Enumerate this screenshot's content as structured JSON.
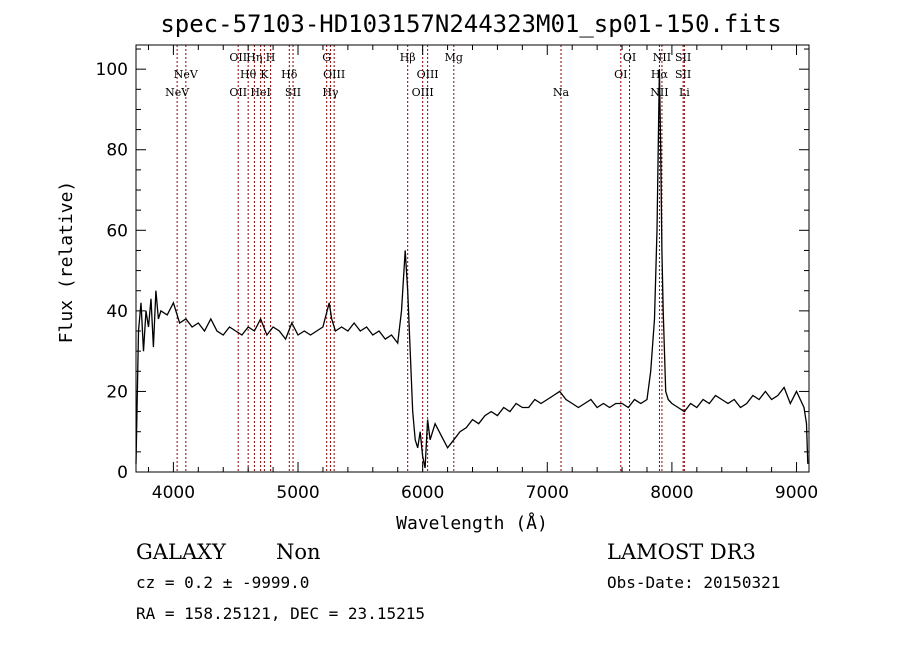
{
  "chart_data": {
    "type": "line",
    "title": "spec-57103-HD103157N244323M01_sp01-150.fits",
    "xlabel": "Wavelength (Å)",
    "ylabel": "Flux (relative)",
    "xlim": [
      3700,
      9100
    ],
    "ylim": [
      0,
      106
    ],
    "xticks": [
      4000,
      5000,
      6000,
      7000,
      8000,
      9000
    ],
    "yticks": [
      0,
      20,
      40,
      60,
      80,
      100
    ],
    "xtick_labels": [
      "4000",
      "5000",
      "6000",
      "7000",
      "8000",
      "9000"
    ],
    "ytick_labels": [
      "0",
      "20",
      "40",
      "60",
      "80",
      "100"
    ],
    "grid": false,
    "line_color": "#000000",
    "marker_color": "#8b0000",
    "series": [
      {
        "x": [
          3700,
          3720,
          3740,
          3760,
          3780,
          3800,
          3820,
          3840,
          3860,
          3880,
          3900,
          3950,
          4000,
          4050,
          4100,
          4150,
          4200,
          4250,
          4300,
          4350,
          4400,
          4450,
          4500,
          4550,
          4600,
          4650,
          4700,
          4750,
          4800,
          4850,
          4900,
          4950,
          5000,
          5050,
          5100,
          5150,
          5200,
          5250,
          5270,
          5300,
          5350,
          5400,
          5450,
          5500,
          5550,
          5600,
          5650,
          5700,
          5750,
          5800,
          5830,
          5860,
          5880,
          5900,
          5920,
          5940,
          5960,
          5980,
          6000,
          6020,
          6040,
          6060,
          6080,
          6100,
          6150,
          6200,
          6250,
          6300,
          6350,
          6400,
          6450,
          6500,
          6550,
          6600,
          6650,
          6700,
          6750,
          6800,
          6850,
          6900,
          6950,
          7000,
          7050,
          7100,
          7150,
          7200,
          7250,
          7300,
          7350,
          7400,
          7450,
          7500,
          7550,
          7600,
          7650,
          7700,
          7750,
          7800,
          7830,
          7860,
          7880,
          7900,
          7910,
          7920,
          7930,
          7950,
          7970,
          8000,
          8050,
          8100,
          8150,
          8200,
          8250,
          8300,
          8350,
          8400,
          8450,
          8500,
          8550,
          8600,
          8650,
          8700,
          8750,
          8800,
          8850,
          8900,
          8950,
          9000,
          9030,
          9060,
          9080,
          9090
        ],
        "y": [
          2,
          35,
          42,
          30,
          40,
          36,
          43,
          31,
          45,
          38,
          40,
          39,
          42,
          37,
          38,
          36,
          37,
          35,
          38,
          35,
          34,
          36,
          35,
          34,
          36,
          35,
          38,
          34,
          36,
          35,
          33,
          37,
          34,
          35,
          34,
          35,
          36,
          42,
          38,
          35,
          36,
          35,
          37,
          35,
          36,
          34,
          35,
          33,
          34,
          32,
          40,
          55,
          45,
          30,
          15,
          8,
          6,
          10,
          4,
          1,
          13,
          8,
          10,
          12,
          9,
          6,
          8,
          10,
          11,
          13,
          12,
          14,
          15,
          14,
          16,
          15,
          17,
          16,
          16,
          18,
          17,
          18,
          19,
          20,
          18,
          17,
          16,
          17,
          18,
          16,
          17,
          16,
          17,
          17,
          16,
          18,
          17,
          18,
          25,
          38,
          60,
          100,
          80,
          55,
          40,
          20,
          18,
          17,
          16,
          15,
          17,
          16,
          18,
          17,
          19,
          18,
          17,
          18,
          16,
          17,
          19,
          18,
          20,
          18,
          19,
          21,
          17,
          20,
          18,
          16,
          12,
          2
        ]
      }
    ],
    "line_markers": [
      {
        "x": 4030,
        "label": "NeV",
        "row": 3
      },
      {
        "x": 4100,
        "label": "NeV",
        "row": 2
      },
      {
        "x": 4520,
        "label": "OII",
        "row": 1
      },
      {
        "x": 4520,
        "label": "OII",
        "row": 3
      },
      {
        "x": 4600,
        "label": "Hθ",
        "row": 2
      },
      {
        "x": 4650,
        "label": "Hη",
        "row": 1
      },
      {
        "x": 4700,
        "label": "HeI",
        "row": 3
      },
      {
        "x": 4730,
        "label": "K",
        "row": 2
      },
      {
        "x": 4780,
        "label": "H",
        "row": 1
      },
      {
        "x": 4930,
        "label": "Hδ",
        "row": 2
      },
      {
        "x": 4960,
        "label": "SII",
        "row": 3
      },
      {
        "x": 5230,
        "label": "G",
        "row": 1
      },
      {
        "x": 5260,
        "label": "Hγ",
        "row": 3
      },
      {
        "x": 5290,
        "label": "OIII",
        "row": 2
      },
      {
        "x": 5880,
        "label": "Hβ",
        "row": 1
      },
      {
        "x": 6000,
        "label": "OIII",
        "row": 3
      },
      {
        "x": 6040,
        "label": "OIII",
        "row": 2
      },
      {
        "x": 6250,
        "label": "Mg",
        "row": 1
      },
      {
        "x": 7110,
        "label": "Na",
        "row": 3
      },
      {
        "x": 7590,
        "label": "OI",
        "row": 2
      },
      {
        "x": 7660,
        "label": "OI",
        "row": 1
      },
      {
        "x": 7900,
        "label": "Hα",
        "row": 2
      },
      {
        "x": 7900,
        "label": "NII",
        "row": 3
      },
      {
        "x": 7920,
        "label": "NII",
        "row": 1
      },
      {
        "x": 8090,
        "label": "SII",
        "row": 1
      },
      {
        "x": 8090,
        "label": "SII",
        "row": 2
      },
      {
        "x": 8100,
        "label": "Li",
        "row": 3
      }
    ]
  },
  "footer": {
    "class_label": "GALAXY",
    "subclass_label": "Non",
    "survey": "LAMOST DR3",
    "cz_text": "cz = 0.2 ± -9999.0",
    "obs_date": "Obs-Date: 20150321",
    "radec": "RA = 158.25121, DEC =  23.15215"
  }
}
